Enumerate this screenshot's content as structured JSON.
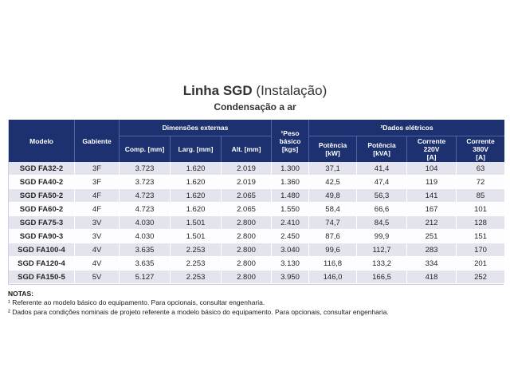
{
  "colors": {
    "header_bg": "#1d3170",
    "header_divider": "#5064a6",
    "stripe": "#e3e4ee",
    "table_border": "#c9d0e2"
  },
  "page": {
    "title_main": "Linha SGD",
    "title_suffix": "(Instalação)",
    "subtitle": "Condensação a ar"
  },
  "table": {
    "headers": {
      "modelo": "Modelo",
      "gabiente": "Gabiente",
      "dimensoes_group": "Dimensões externas",
      "comp": "Comp. [mm]",
      "larg": "Larg. [mm]",
      "alt": "Alt. [mm]",
      "peso_lines": [
        "¹Peso",
        "básico",
        "[kgs]"
      ],
      "dados_group": "²Dados elétricos",
      "pot_kw": "Potência [kW]",
      "pot_kva": "Potência [kVA]",
      "corrente220_lines": [
        "Corrente 220V",
        "[A]"
      ],
      "corrente380_lines": [
        "Corrente 380V",
        "[A]"
      ]
    },
    "row_fields": [
      "modelo",
      "gabiente",
      "comp",
      "larg",
      "alt",
      "peso",
      "pot_kw",
      "pot_kva",
      "c220",
      "c380"
    ],
    "rows": [
      {
        "modelo": "SGD FA32-2",
        "gabiente": "3F",
        "comp": "3.723",
        "larg": "1.620",
        "alt": "2.019",
        "peso": "1.300",
        "pot_kw": "37,1",
        "pot_kva": "41,4",
        "c220": "104",
        "c380": "63"
      },
      {
        "modelo": "SGD FA40-2",
        "gabiente": "3F",
        "comp": "3.723",
        "larg": "1.620",
        "alt": "2.019",
        "peso": "1.360",
        "pot_kw": "42,5",
        "pot_kva": "47,4",
        "c220": "119",
        "c380": "72"
      },
      {
        "modelo": "SGD FA50-2",
        "gabiente": "4F",
        "comp": "4.723",
        "larg": "1.620",
        "alt": "2.065",
        "peso": "1.480",
        "pot_kw": "49,8",
        "pot_kva": "56,3",
        "c220": "141",
        "c380": "85"
      },
      {
        "modelo": "SGD FA60-2",
        "gabiente": "4F",
        "comp": "4.723",
        "larg": "1.620",
        "alt": "2.065",
        "peso": "1.550",
        "pot_kw": "58,4",
        "pot_kva": "66,6",
        "c220": "167",
        "c380": "101"
      },
      {
        "modelo": "SGD FA75-3",
        "gabiente": "3V",
        "comp": "4.030",
        "larg": "1.501",
        "alt": "2.800",
        "peso": "2.410",
        "pot_kw": "74,7",
        "pot_kva": "84,5",
        "c220": "212",
        "c380": "128"
      },
      {
        "modelo": "SGD FA90-3",
        "gabiente": "3V",
        "comp": "4.030",
        "larg": "1.501",
        "alt": "2.800",
        "peso": "2.450",
        "pot_kw": "87,6",
        "pot_kva": "99,9",
        "c220": "251",
        "c380": "151"
      },
      {
        "modelo": "SGD FA100-4",
        "gabiente": "4V",
        "comp": "3.635",
        "larg": "2.253",
        "alt": "2.800",
        "peso": "3.040",
        "pot_kw": "99,6",
        "pot_kva": "112,7",
        "c220": "283",
        "c380": "170"
      },
      {
        "modelo": "SGD FA120-4",
        "gabiente": "4V",
        "comp": "3.635",
        "larg": "2.253",
        "alt": "2.800",
        "peso": "3.130",
        "pot_kw": "116,8",
        "pot_kva": "133,2",
        "c220": "334",
        "c380": "201"
      },
      {
        "modelo": "SGD FA150-5",
        "gabiente": "5V",
        "comp": "5.127",
        "larg": "2.253",
        "alt": "2.800",
        "peso": "3.950",
        "pot_kw": "146,0",
        "pot_kva": "166,5",
        "c220": "418",
        "c380": "252"
      }
    ]
  },
  "notes": {
    "label": "NOTAS:",
    "note1": "¹ Referente ao modelo básico do equipamento. Para opcionais, consultar engenharia.",
    "note2": "² Dados para condições nominais de projeto referente a modelo básico do equipamento. Para opcionais, consultar engenharia."
  }
}
